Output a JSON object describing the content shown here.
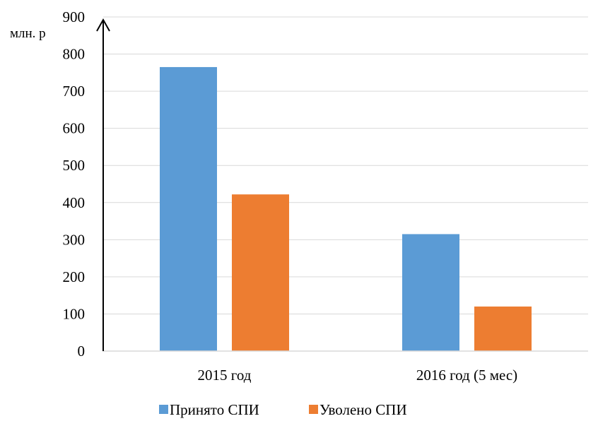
{
  "chart_data": {
    "type": "bar",
    "title": "",
    "ylabel": "млн. р",
    "xlabel": "",
    "ylim": [
      0,
      900
    ],
    "yticks": [
      "0",
      "100",
      "200",
      "300",
      "400",
      "500",
      "600",
      "700",
      "800",
      "900"
    ],
    "categories": [
      "2015 год",
      "2016 год (5 мес)"
    ],
    "series": [
      {
        "name": "Принято СПИ",
        "color": "#5b9bd5",
        "values": [
          765,
          315
        ]
      },
      {
        "name": "Уволено СПИ",
        "color": "#ed7d31",
        "values": [
          422,
          120
        ]
      }
    ],
    "grid": true,
    "legend_position": "bottom"
  }
}
